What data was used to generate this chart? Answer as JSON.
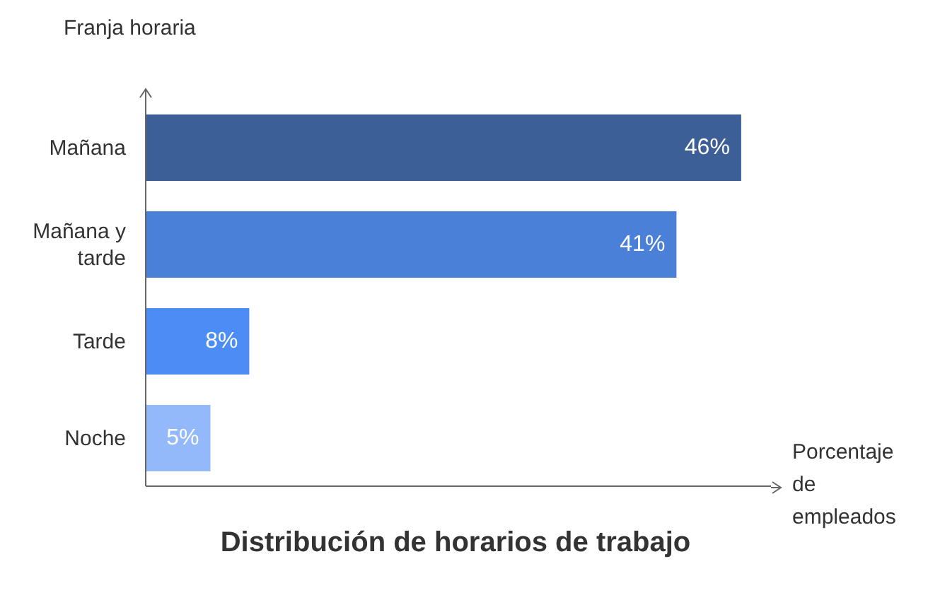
{
  "chart_data": {
    "type": "bar",
    "orientation": "horizontal",
    "title": "Distribución de horarios de trabajo",
    "xlabel": "Porcentaje de empleados",
    "ylabel": "Franja horaria",
    "categories": [
      "Mañana",
      "Mañana y tarde",
      "Tarde",
      "Noche"
    ],
    "values": [
      46,
      41,
      8,
      5
    ],
    "colors": [
      "#3d5f97",
      "#4a80d8",
      "#4b8cf5",
      "#93b9fb"
    ],
    "value_labels": [
      "46%",
      "41%",
      "8%",
      "5%"
    ],
    "grid": false,
    "legend": false
  }
}
